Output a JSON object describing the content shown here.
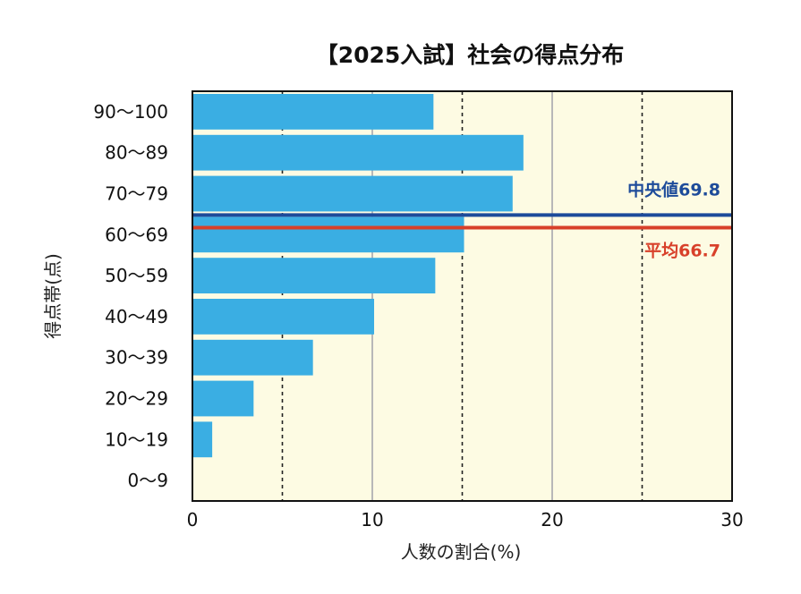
{
  "chart_data": {
    "type": "bar",
    "orientation": "horizontal",
    "title": "【2025入試】社会の得点分布",
    "xlabel": "人数の割合(%)",
    "ylabel": "得点帯(点)",
    "xlim": [
      0,
      30
    ],
    "x_ticks": [
      "0",
      "10",
      "20",
      "30"
    ],
    "grid": {
      "solid_at": [
        10,
        20
      ],
      "dashed_at": [
        5,
        15,
        25
      ]
    },
    "categories": [
      "90〜100",
      "80〜89",
      "70〜79",
      "60〜69",
      "50〜59",
      "40〜49",
      "30〜39",
      "20〜29",
      "10〜19",
      "0〜9"
    ],
    "values": [
      13.4,
      18.4,
      17.8,
      15.1,
      13.5,
      10.1,
      6.7,
      3.4,
      1.1,
      0
    ],
    "reference_lines": [
      {
        "label": "中央値69.8",
        "value": 69.8,
        "color": "#1d4b9a"
      },
      {
        "label": "平均66.7",
        "value": 66.7,
        "color": "#d8402a"
      }
    ],
    "colors": {
      "bar": "#3aaee3",
      "plot_background": "#fdfbe3"
    }
  }
}
